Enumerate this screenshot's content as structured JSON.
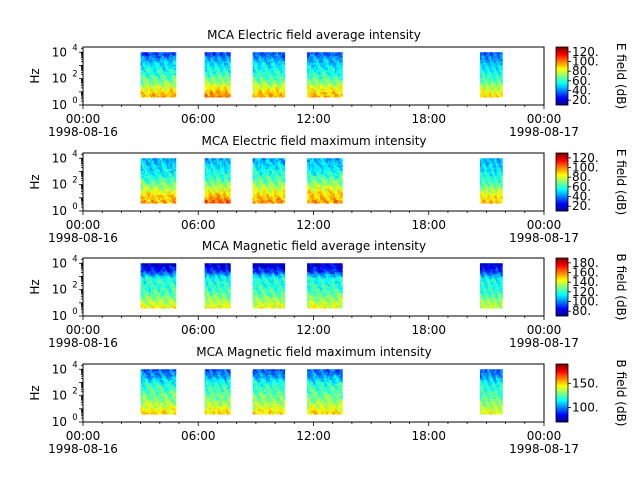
{
  "figure": {
    "instrument": "MCA",
    "time_tick_labels": [
      "00:00",
      "06:00",
      "12:00",
      "18:00",
      "00:00"
    ],
    "start_date_label": "1998-08-16",
    "end_date_label": "1998-08-17"
  },
  "chart_data": [
    {
      "type": "heatmap",
      "title": "MCA  Electric field average intensity",
      "ylabel": "Hz",
      "yscale": "log",
      "yticks": [
        {
          "base": "10",
          "exp": "0"
        },
        {
          "base": "10",
          "exp": "2"
        },
        {
          "base": "10",
          "exp": "4"
        }
      ],
      "ylim_log10": [
        0,
        4.4
      ],
      "x_ticks": [
        "00:00",
        "06:00",
        "12:00",
        "18:00",
        "00:00"
      ],
      "x_start_date": "1998-08-16",
      "x_end_date": "1998-08-17",
      "colorbar": {
        "label": "E field (dB)",
        "ticks": [
          20,
          40,
          60,
          80,
          100,
          120
        ],
        "range": [
          10,
          130
        ],
        "colormap": "jet"
      },
      "data_blocks": [
        {
          "start": "03:00",
          "end": "04:50",
          "freq_log10": [
            0.6,
            4.0
          ],
          "mean_db": [
            95,
            85,
            70,
            60,
            55,
            45,
            30
          ]
        },
        {
          "start": "06:20",
          "end": "07:40",
          "freq_log10": [
            0.6,
            4.0
          ],
          "mean_db": [
            100,
            90,
            72,
            62,
            55,
            45,
            30
          ]
        },
        {
          "start": "08:50",
          "end": "10:30",
          "freq_log10": [
            0.6,
            4.0
          ],
          "mean_db": [
            95,
            85,
            70,
            60,
            55,
            45,
            35
          ]
        },
        {
          "start": "11:40",
          "end": "13:30",
          "freq_log10": [
            0.6,
            4.0
          ],
          "mean_db": [
            95,
            85,
            70,
            60,
            55,
            45,
            35
          ]
        },
        {
          "start": "20:40",
          "end": "21:50",
          "freq_log10": [
            0.6,
            4.0
          ],
          "mean_db": [
            90,
            80,
            68,
            58,
            52,
            45,
            35
          ]
        }
      ]
    },
    {
      "type": "heatmap",
      "title": "MCA  Electric field maximum intensity",
      "ylabel": "Hz",
      "yscale": "log",
      "yticks": [
        {
          "base": "10",
          "exp": "0"
        },
        {
          "base": "10",
          "exp": "2"
        },
        {
          "base": "10",
          "exp": "4"
        }
      ],
      "ylim_log10": [
        0,
        4.4
      ],
      "x_ticks": [
        "00:00",
        "06:00",
        "12:00",
        "18:00",
        "00:00"
      ],
      "x_start_date": "1998-08-16",
      "x_end_date": "1998-08-17",
      "colorbar": {
        "label": "E field (dB)",
        "ticks": [
          20,
          40,
          60,
          80,
          100,
          120
        ],
        "range": [
          10,
          130
        ],
        "colormap": "jet"
      },
      "data_blocks": [
        {
          "start": "03:00",
          "end": "04:50",
          "freq_log10": [
            0.6,
            4.0
          ],
          "mean_db": [
            95,
            90,
            75,
            65,
            55,
            50,
            45
          ]
        },
        {
          "start": "06:20",
          "end": "07:40",
          "freq_log10": [
            0.6,
            4.0
          ],
          "mean_db": [
            105,
            95,
            78,
            65,
            58,
            52,
            45
          ]
        },
        {
          "start": "08:50",
          "end": "10:30",
          "freq_log10": [
            0.6,
            4.0
          ],
          "mean_db": [
            98,
            90,
            78,
            68,
            58,
            52,
            45
          ]
        },
        {
          "start": "11:40",
          "end": "13:30",
          "freq_log10": [
            0.6,
            4.0
          ],
          "mean_db": [
            98,
            92,
            80,
            68,
            58,
            52,
            45
          ]
        },
        {
          "start": "20:40",
          "end": "21:50",
          "freq_log10": [
            0.6,
            4.0
          ],
          "mean_db": [
            92,
            85,
            72,
            62,
            55,
            50,
            45
          ]
        }
      ]
    },
    {
      "type": "heatmap",
      "title": "MCA  Magnetic field average intensity",
      "ylabel": "Hz",
      "yscale": "log",
      "yticks": [
        {
          "base": "10",
          "exp": "0"
        },
        {
          "base": "10",
          "exp": "2"
        },
        {
          "base": "10",
          "exp": "4"
        }
      ],
      "ylim_log10": [
        0,
        4.4
      ],
      "x_ticks": [
        "00:00",
        "06:00",
        "12:00",
        "18:00",
        "00:00"
      ],
      "x_start_date": "1998-08-16",
      "x_end_date": "1998-08-17",
      "colorbar": {
        "label": "B field (dB)",
        "ticks": [
          80,
          100,
          120,
          140,
          160,
          180
        ],
        "range": [
          70,
          190
        ],
        "colormap": "jet"
      },
      "data_blocks": [
        {
          "start": "03:00",
          "end": "04:50",
          "freq_log10": [
            0.6,
            4.0
          ],
          "mean_db": [
            145,
            135,
            125,
            120,
            118,
            90,
            78
          ]
        },
        {
          "start": "06:20",
          "end": "07:40",
          "freq_log10": [
            0.6,
            4.0
          ],
          "mean_db": [
            145,
            135,
            125,
            120,
            118,
            90,
            78
          ]
        },
        {
          "start": "08:50",
          "end": "10:30",
          "freq_log10": [
            0.6,
            4.0
          ],
          "mean_db": [
            145,
            135,
            125,
            120,
            118,
            90,
            78
          ]
        },
        {
          "start": "11:40",
          "end": "13:30",
          "freq_log10": [
            0.6,
            4.0
          ],
          "mean_db": [
            145,
            135,
            125,
            120,
            118,
            90,
            78
          ]
        },
        {
          "start": "20:40",
          "end": "21:50",
          "freq_log10": [
            0.6,
            4.0
          ],
          "mean_db": [
            140,
            132,
            122,
            118,
            115,
            90,
            78
          ]
        }
      ]
    },
    {
      "type": "heatmap",
      "title": "MCA  Magnetic field maximum intensity",
      "ylabel": "Hz",
      "yscale": "log",
      "yticks": [
        {
          "base": "10",
          "exp": "0"
        },
        {
          "base": "10",
          "exp": "2"
        },
        {
          "base": "10",
          "exp": "4"
        }
      ],
      "ylim_log10": [
        0,
        4.4
      ],
      "x_ticks": [
        "00:00",
        "06:00",
        "12:00",
        "18:00",
        "00:00"
      ],
      "x_start_date": "1998-08-16",
      "x_end_date": "1998-08-17",
      "colorbar": {
        "label": "B field (dB)",
        "ticks": [
          100,
          150
        ],
        "range": [
          70,
          190
        ],
        "colormap": "jet"
      },
      "data_blocks": [
        {
          "start": "03:00",
          "end": "04:50",
          "freq_log10": [
            0.6,
            4.0
          ],
          "mean_db": [
            150,
            140,
            130,
            125,
            120,
            105,
            95
          ]
        },
        {
          "start": "06:20",
          "end": "07:40",
          "freq_log10": [
            0.6,
            4.0
          ],
          "mean_db": [
            150,
            140,
            130,
            125,
            120,
            105,
            95
          ]
        },
        {
          "start": "08:50",
          "end": "10:30",
          "freq_log10": [
            0.6,
            4.0
          ],
          "mean_db": [
            150,
            140,
            130,
            125,
            120,
            105,
            95
          ]
        },
        {
          "start": "11:40",
          "end": "13:30",
          "freq_log10": [
            0.6,
            4.0
          ],
          "mean_db": [
            150,
            140,
            130,
            125,
            120,
            105,
            95
          ]
        },
        {
          "start": "20:40",
          "end": "21:50",
          "freq_log10": [
            0.6,
            4.0
          ],
          "mean_db": [
            145,
            135,
            128,
            122,
            118,
            105,
            95
          ]
        }
      ]
    }
  ]
}
